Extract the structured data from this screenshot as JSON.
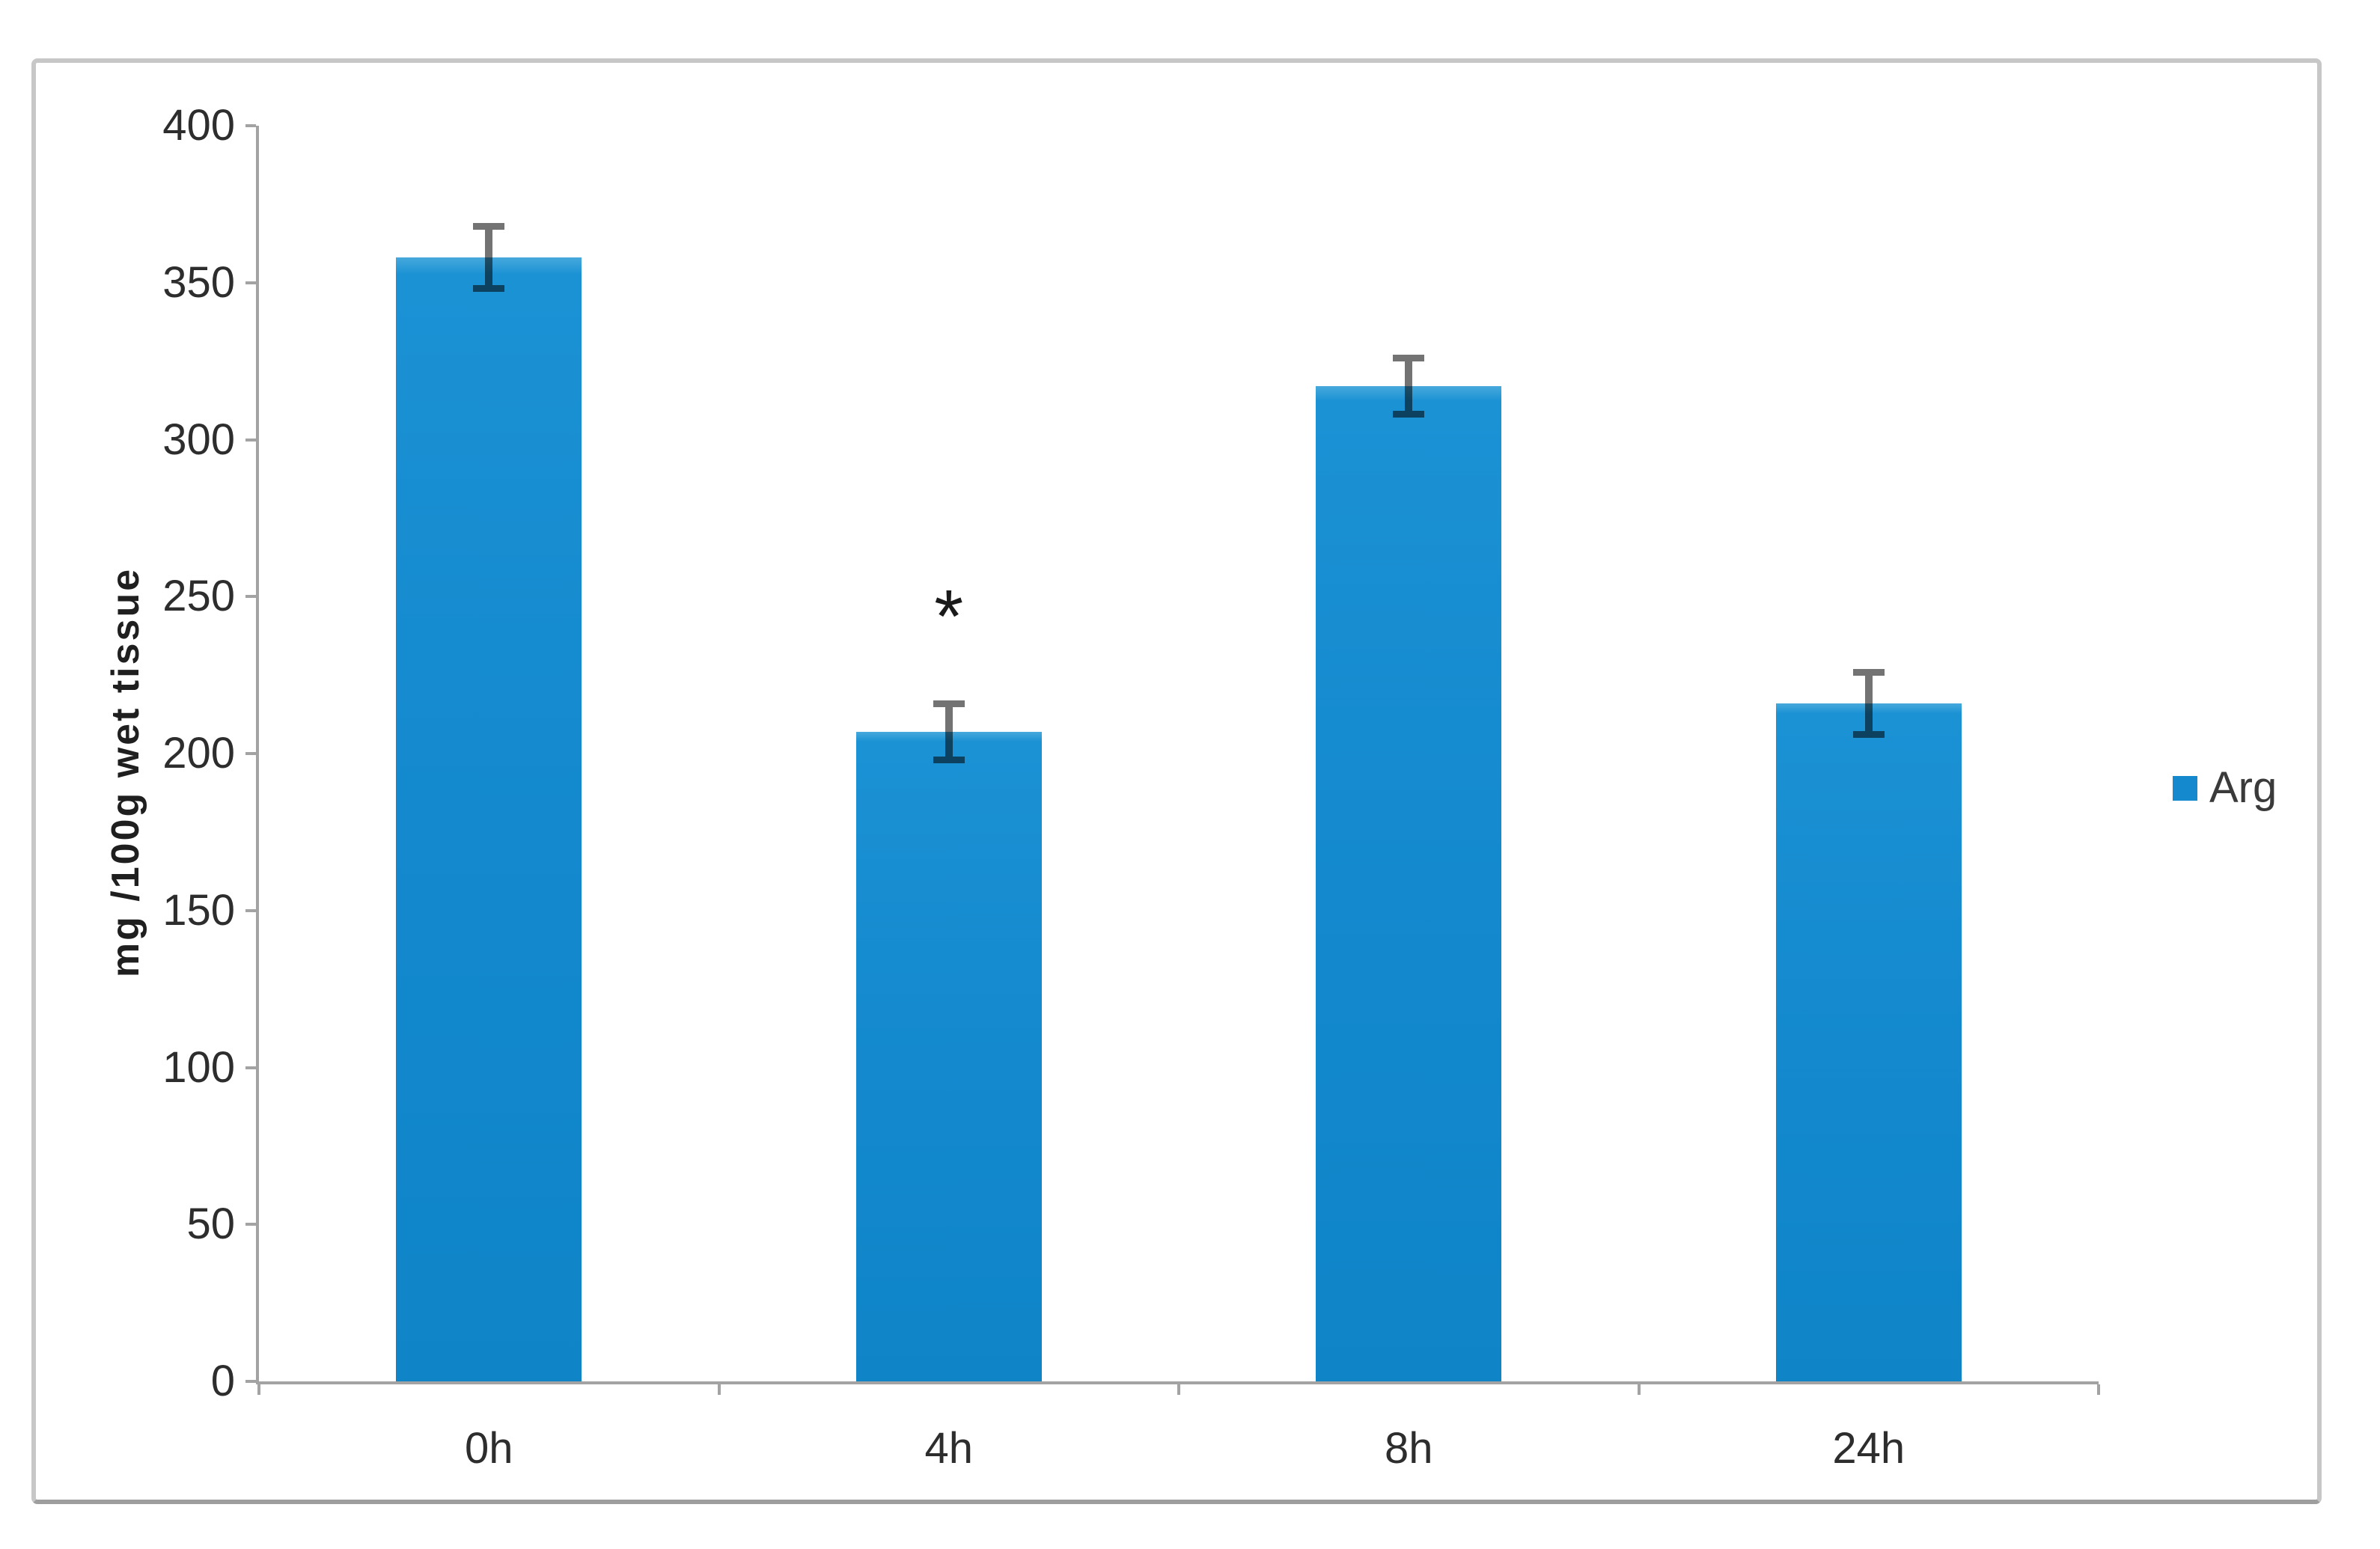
{
  "chart_data": {
    "type": "bar",
    "title": "",
    "categories": [
      "0h",
      "4h",
      "8h",
      "24h"
    ],
    "series": [
      {
        "name": "Arg",
        "values": [
          358,
          207,
          317,
          216
        ],
        "errors": [
          11,
          10,
          10,
          11
        ]
      }
    ],
    "xlabel": "",
    "ylabel": "mg /100g wet tissue",
    "ylim": [
      0,
      400
    ],
    "yticks": [
      0,
      50,
      100,
      150,
      200,
      250,
      300,
      350,
      400
    ],
    "grid": false,
    "legend_position": "right-middle",
    "bar_color": "#1489CE",
    "axis_color": "#A3A3A3",
    "annotations": [
      {
        "text": "*",
        "category_index": 1,
        "y_value": 243
      }
    ]
  }
}
